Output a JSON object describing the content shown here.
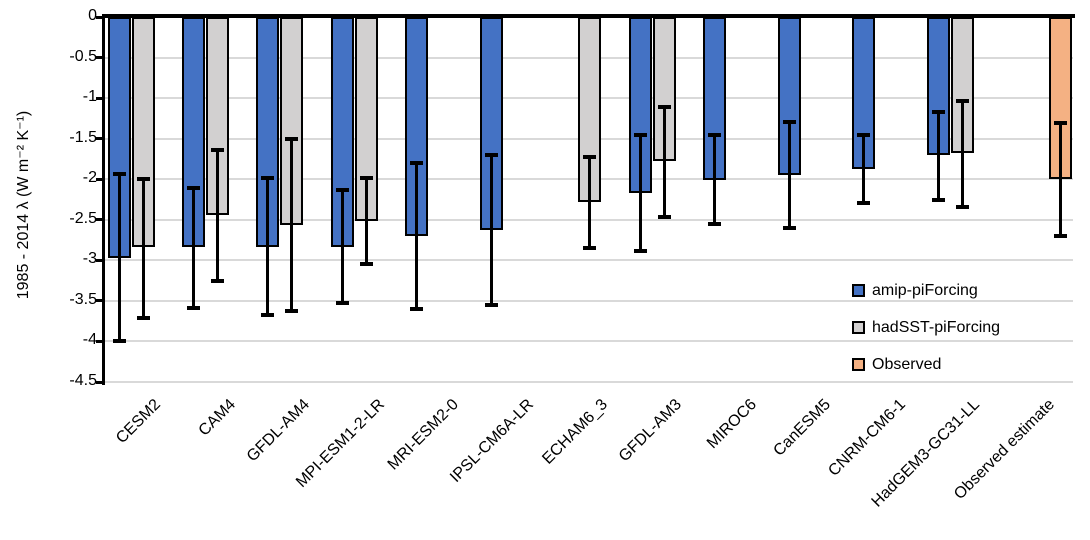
{
  "chart_data": {
    "type": "bar",
    "title": "",
    "xlabel": "",
    "ylabel": "1985 - 2014 λ (W m⁻² K⁻¹)",
    "ylim": [
      -4.5,
      0
    ],
    "yticks": [
      "0",
      "-0.5",
      "-1",
      "-1.5",
      "-2",
      "-2.5",
      "-3",
      "-3.5",
      "-4",
      "-4.5"
    ],
    "grid": true,
    "legend_position": "inside-right",
    "colors": {
      "grid": "#d9d9d9",
      "axis": "#000000"
    },
    "categories": [
      "CESM2",
      "CAM4",
      "GFDL-AM4",
      "MPI-ESM1-2-LR",
      "MRI-ESM2-0",
      "IPSL-CM6A-LR",
      "ECHAM6_3",
      "GFDL-AM3",
      "MIROC6",
      "CanESM5",
      "CNRM-CM6-1",
      "HadGEM3-GC31-LL",
      "Observed estimate"
    ],
    "series": [
      {
        "name": "amip-piForcing",
        "color": "#4472C4",
        "values": [
          -2.97,
          -2.84,
          -2.84,
          -2.83,
          -2.7,
          -2.62,
          null,
          -2.17,
          -2.01,
          -1.95,
          -1.88,
          -1.7,
          null
        ],
        "err_top": [
          -1.94,
          -2.11,
          -1.99,
          -2.13,
          -1.8,
          -1.7,
          null,
          -1.45,
          -1.46,
          -1.29,
          -1.45,
          -1.17,
          null
        ],
        "err_bot": [
          -3.99,
          -3.59,
          -3.68,
          -3.52,
          -3.6,
          -3.55,
          null,
          -2.89,
          -2.55,
          -2.6,
          -2.29,
          -2.25,
          null
        ]
      },
      {
        "name": "hadSST-piForcing",
        "color": "#D2D0D0",
        "values": [
          -2.84,
          -2.44,
          -2.57,
          -2.52,
          null,
          null,
          -2.28,
          -1.78,
          null,
          null,
          null,
          -1.68,
          null
        ],
        "err_top": [
          -2.0,
          -1.64,
          -1.51,
          -1.99,
          null,
          null,
          -1.72,
          -1.11,
          null,
          null,
          null,
          -1.04,
          null
        ],
        "err_bot": [
          -3.71,
          -3.25,
          -3.62,
          -3.05,
          null,
          null,
          -2.85,
          -2.46,
          null,
          null,
          null,
          -2.34,
          null
        ]
      },
      {
        "name": "Observed",
        "color": "#F4B183",
        "values": [
          null,
          null,
          null,
          null,
          null,
          null,
          null,
          null,
          null,
          null,
          null,
          null,
          -2.0
        ],
        "err_top": [
          null,
          null,
          null,
          null,
          null,
          null,
          null,
          null,
          null,
          null,
          null,
          null,
          -1.31
        ],
        "err_bot": [
          null,
          null,
          null,
          null,
          null,
          null,
          null,
          null,
          null,
          null,
          null,
          null,
          -2.7
        ]
      }
    ]
  }
}
